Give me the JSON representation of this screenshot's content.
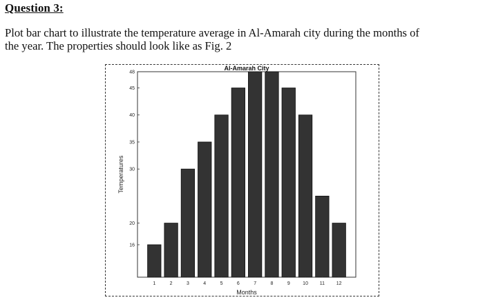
{
  "question": {
    "heading": "Question 3:",
    "line1": "Plot bar chart to illustrate the temperature average in Al-Amarah city during the months of",
    "line2": "the year. The properties should look like as Fig. 2"
  },
  "chart_data": {
    "type": "bar",
    "title": "Al-Amarah City",
    "xlabel": "Months",
    "ylabel": "Temperatures",
    "categories": [
      "1",
      "2",
      "3",
      "4",
      "5",
      "6",
      "7",
      "8",
      "9",
      "10",
      "11",
      "12"
    ],
    "values": [
      16,
      20,
      30,
      35,
      40,
      45,
      48,
      48,
      45,
      40,
      25,
      20
    ],
    "yticks": [
      16,
      20,
      30,
      35,
      40,
      45,
      48
    ],
    "ylim": [
      10,
      48
    ],
    "grid": false,
    "bar_color": "#333333"
  }
}
